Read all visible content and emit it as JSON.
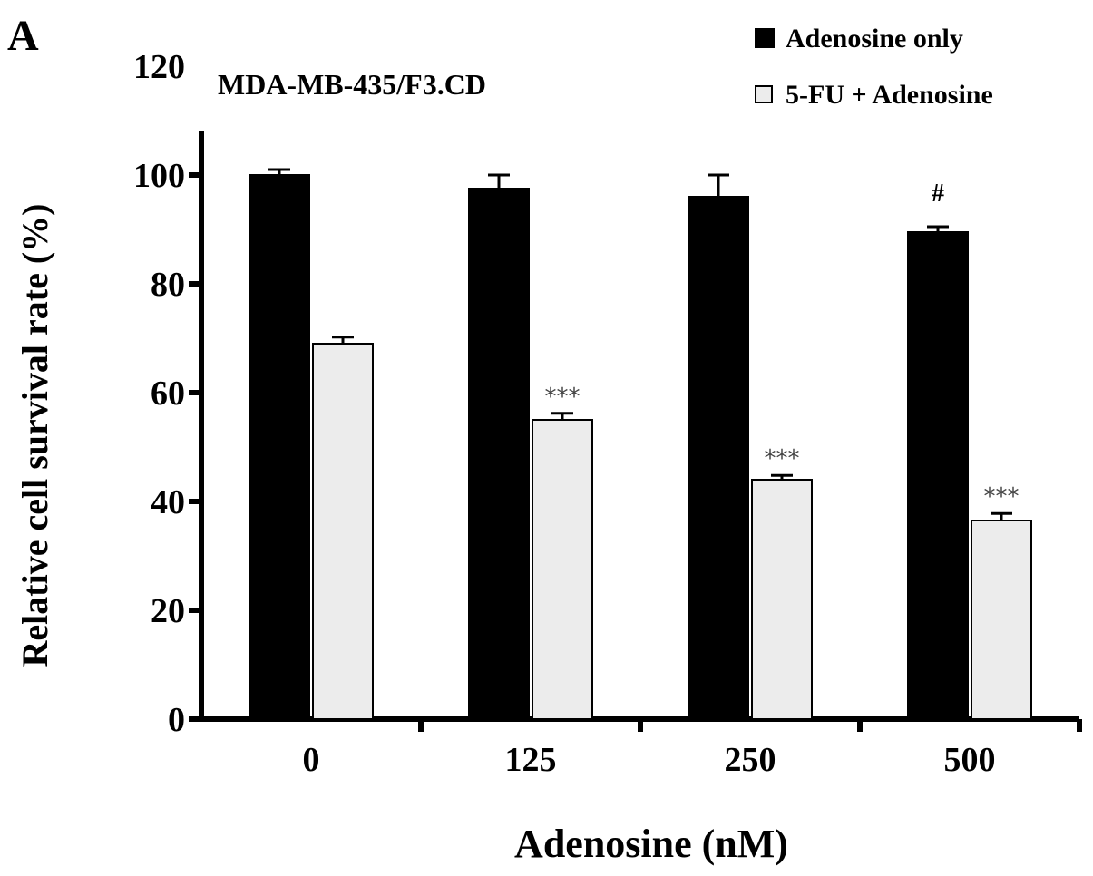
{
  "chart_data": {
    "type": "bar",
    "panel_label": "A",
    "title": "MDA-MB-435/F3.CD",
    "xlabel": "Adenosine (nM)",
    "ylabel": "Relative cell survival rate (%)",
    "categories": [
      "0",
      "125",
      "250",
      "500"
    ],
    "ylim": [
      0,
      120
    ],
    "yticks": [
      "0",
      "20",
      "40",
      "60",
      "80",
      "100",
      "120"
    ],
    "grid": false,
    "legend_position": "top-right",
    "series": [
      {
        "name": "Adenosine only",
        "color": "#000000",
        "values": [
          100,
          97.5,
          96,
          89.5
        ],
        "errors": [
          1,
          2.5,
          4,
          1
        ],
        "annotations": [
          "",
          "",
          "",
          "#"
        ]
      },
      {
        "name": "5-FU + Adenosine",
        "color": "#ececec",
        "values": [
          69,
          55,
          44,
          36.5
        ],
        "errors": [
          1.2,
          1.2,
          0.8,
          1.3
        ],
        "annotations": [
          "",
          "***",
          "***",
          "***"
        ]
      }
    ]
  }
}
